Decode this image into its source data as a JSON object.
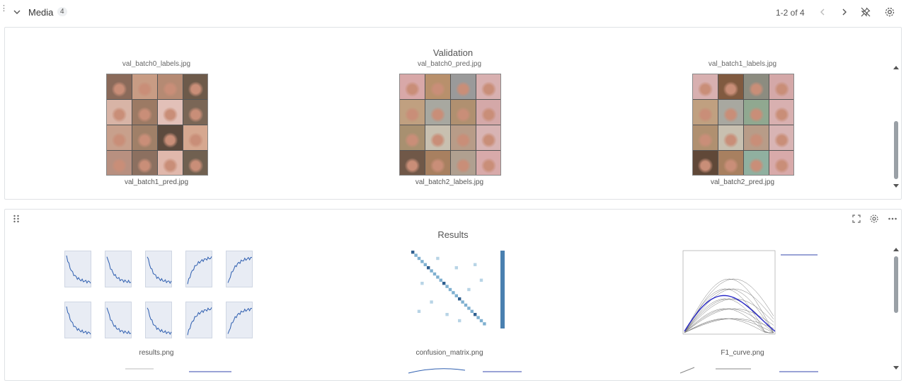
{
  "header": {
    "title": "Media",
    "count": "4",
    "pagination": "1-2 of 4"
  },
  "validation_panel": {
    "title": "Validation",
    "top_captions": [
      "val_batch0_labels.jpg",
      "val_batch0_pred.jpg",
      "val_batch1_labels.jpg"
    ],
    "captions": [
      "val_batch1_pred.jpg",
      "val_batch2_labels.jpg",
      "val_batch2_pred.jpg"
    ]
  },
  "results_panel": {
    "title": "Results",
    "captions": [
      "results.png",
      "confusion_matrix.png",
      "F1_curve.png"
    ]
  },
  "colors": {
    "border": "#dfe2e5",
    "scroll": "#9aa0a6",
    "accent_blue": "#2f5fb0"
  }
}
